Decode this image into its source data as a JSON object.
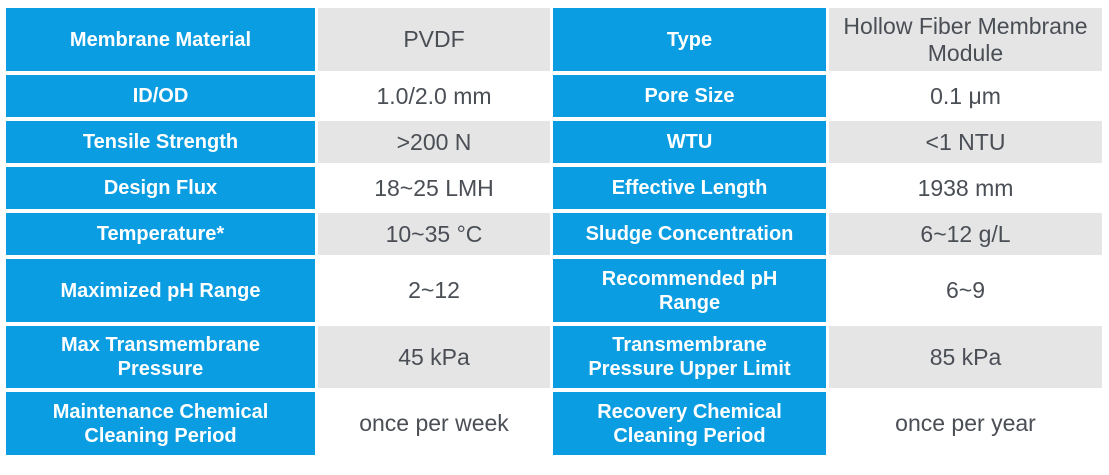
{
  "table": {
    "accent_color": "#0a9de2",
    "shade_color": "#e5e5e6",
    "label_text_color": "#ffffff",
    "value_text_color": "#4a4e55",
    "rows": [
      {
        "left_label": "Membrane Material",
        "left_value": "PVDF",
        "right_label": "Type",
        "right_value": "Hollow Fiber Membrane\nModule"
      },
      {
        "left_label": "ID/OD",
        "left_value": "1.0/2.0 mm",
        "right_label": "Pore Size",
        "right_value": "0.1 μm"
      },
      {
        "left_label": "Tensile Strength",
        "left_value": ">200 N",
        "right_label": "WTU",
        "right_value": "<1 NTU"
      },
      {
        "left_label": "Design Flux",
        "left_value": "18~25 LMH",
        "right_label": "Effective Length",
        "right_value": "1938 mm"
      },
      {
        "left_label": "Temperature*",
        "left_value": "10~35 °C",
        "right_label": "Sludge Concentration",
        "right_value": "6~12 g/L"
      },
      {
        "left_label": "Maximized pH Range",
        "left_value": "2~12",
        "right_label": "Recommended pH\nRange",
        "right_value": "6~9"
      },
      {
        "left_label": "Max Transmembrane\nPressure",
        "left_value": "45 kPa",
        "right_label": "Transmembrane\nPressure Upper Limit",
        "right_value": "85 kPa"
      },
      {
        "left_label": "Maintenance Chemical\nCleaning Period",
        "left_value": "once per week",
        "right_label": "Recovery Chemical\nCleaning Period",
        "right_value": "once per year"
      }
    ]
  }
}
